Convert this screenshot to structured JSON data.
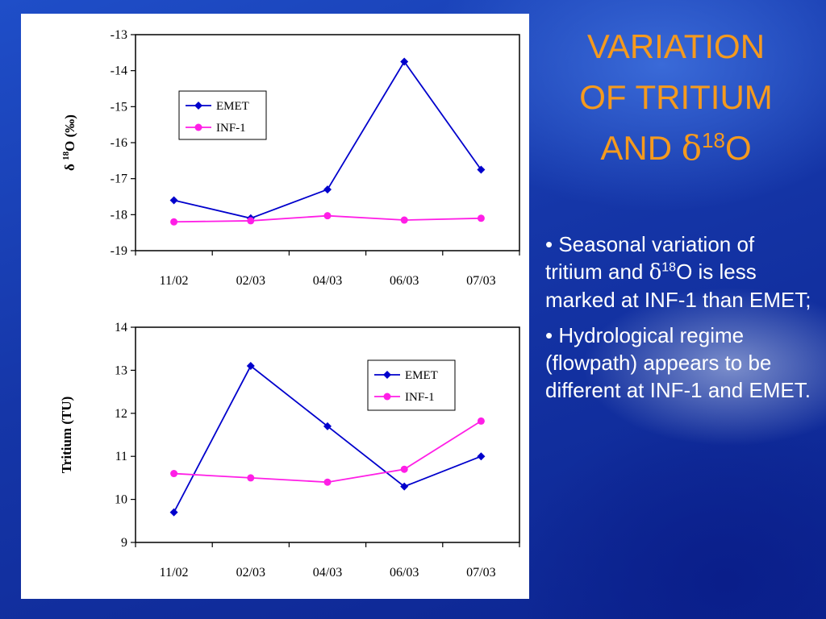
{
  "slide": {
    "title": {
      "line1": "VARIATION",
      "line2": "OF TRITIUM",
      "line3_prefix": "AND ",
      "line3_delta": "δ",
      "line3_sup": "18",
      "line3_suffix": "O"
    },
    "bullets": [
      {
        "marker": "•",
        "part1": " Seasonal variation of tritium and ",
        "delta": "δ",
        "sup": "18",
        "part2": "O is less marked at INF-1 than EMET;"
      },
      {
        "marker": "•",
        "part1": " Hydrological regime (flowpath) appears to be different at INF-1 and EMET."
      }
    ]
  },
  "colors": {
    "emet": "#0000cc",
    "inf1": "#ff1ee6",
    "title": "#f59a1e",
    "text": "#ffffff"
  },
  "chart_data": [
    {
      "type": "line",
      "categories": [
        "11/02",
        "02/03",
        "04/03",
        "06/03",
        "07/03"
      ],
      "series": [
        {
          "name": "EMET",
          "marker": "diamond",
          "values": [
            -17.6,
            -18.1,
            -17.3,
            -13.75,
            -16.75
          ]
        },
        {
          "name": "INF-1",
          "marker": "circle",
          "values": [
            -18.2,
            -18.17,
            -18.03,
            -18.15,
            -18.1
          ]
        }
      ],
      "ylabel": {
        "prefix": "δ ",
        "sup": "18",
        "suffix": "O (‰)"
      },
      "ylim": [
        -19,
        -13
      ],
      "yticks": [
        -13,
        -14,
        -15,
        -16,
        -17,
        -18,
        -19
      ],
      "legend": "upper-left",
      "grid": false
    },
    {
      "type": "line",
      "categories": [
        "11/02",
        "02/03",
        "04/03",
        "06/03",
        "07/03"
      ],
      "series": [
        {
          "name": "EMET",
          "marker": "diamond",
          "values": [
            9.7,
            13.1,
            11.7,
            10.3,
            11.0
          ]
        },
        {
          "name": "INF-1",
          "marker": "circle",
          "values": [
            10.6,
            10.5,
            10.4,
            10.7,
            11.82
          ]
        }
      ],
      "ylabel": {
        "prefix": "Tritium (TU",
        "sup": "",
        "suffix": ")"
      },
      "ylim": [
        9,
        14
      ],
      "yticks": [
        14,
        13,
        12,
        11,
        10,
        9
      ],
      "legend": "upper-right",
      "grid": false
    }
  ]
}
